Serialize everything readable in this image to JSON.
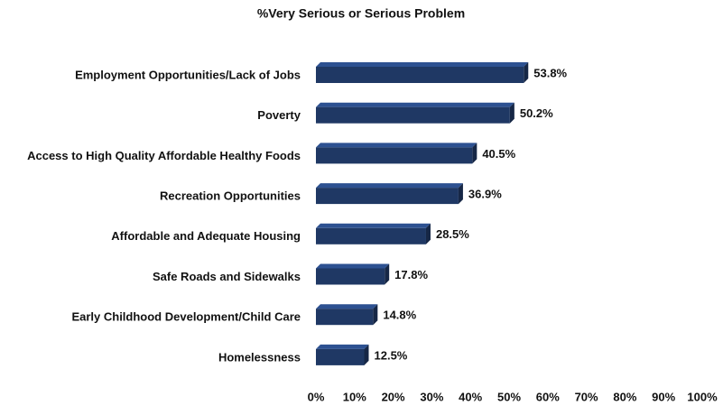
{
  "chart_data": {
    "type": "bar",
    "orientation": "horizontal",
    "title": "%Very Serious or Serious Problem",
    "categories": [
      "Employment Opportunities/Lack of Jobs",
      "Poverty",
      "Access to High Quality Affordable Healthy Foods",
      "Recreation Opportunities",
      "Affordable and Adequate Housing",
      "Safe Roads and Sidewalks",
      "Early Childhood Development/Child Care",
      "Homelessness"
    ],
    "values": [
      53.8,
      50.2,
      40.5,
      36.9,
      28.5,
      17.8,
      14.8,
      12.5
    ],
    "value_labels": [
      "53.8%",
      "50.2%",
      "40.5%",
      "36.9%",
      "28.5%",
      "17.8%",
      "14.8%",
      "12.5%"
    ],
    "color": "#1f3864",
    "xlim": [
      0,
      100
    ],
    "xticks": [
      {
        "value": 0,
        "label": "0%"
      },
      {
        "value": 10,
        "label": "10%"
      },
      {
        "value": 20,
        "label": "20%"
      },
      {
        "value": 30,
        "label": "30%"
      },
      {
        "value": 40,
        "label": "40%"
      },
      {
        "value": 50,
        "label": "50%"
      },
      {
        "value": 60,
        "label": "60%"
      },
      {
        "value": 70,
        "label": "70%"
      },
      {
        "value": 80,
        "label": "80%"
      },
      {
        "value": 90,
        "label": "90%"
      },
      {
        "value": 100,
        "label": "100%"
      }
    ],
    "grid": false
  }
}
